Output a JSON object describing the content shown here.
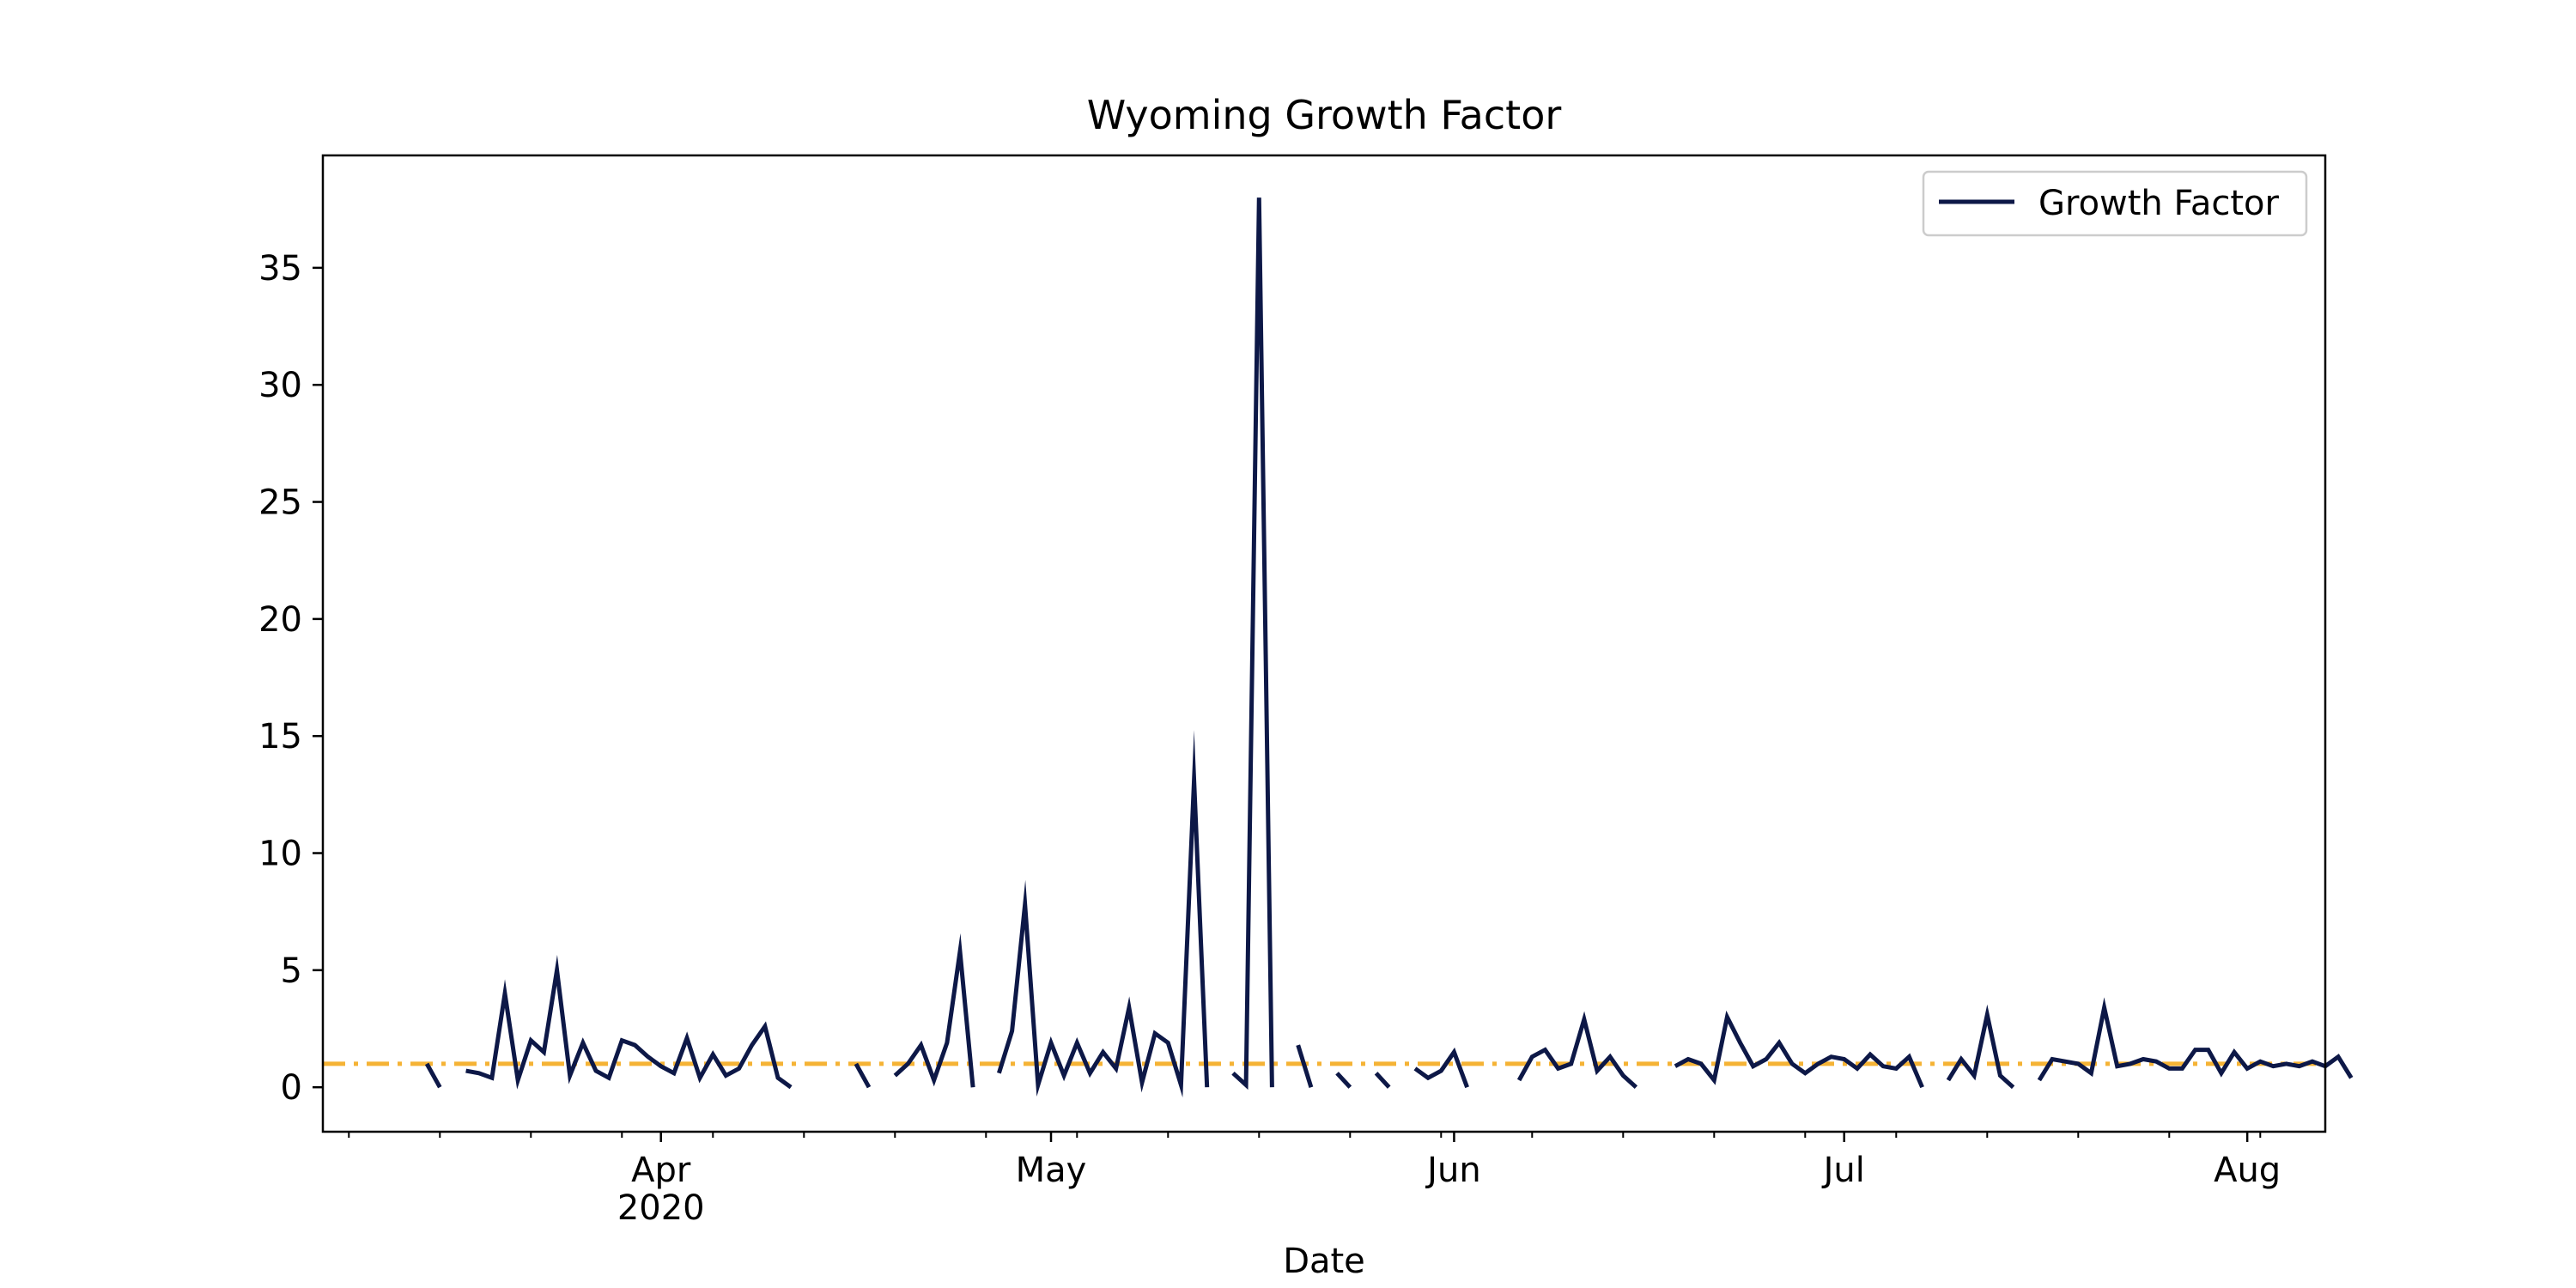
{
  "chart_data": {
    "type": "line",
    "title": "Wyoming Growth Factor",
    "xlabel": "Date",
    "ylabel": "",
    "x_range": [
      "2020-03-06",
      "2020-08-07"
    ],
    "ylim": [
      -1.9,
      39.8
    ],
    "y_ticks": [
      0,
      5,
      10,
      15,
      20,
      25,
      30,
      35
    ],
    "x_ticks": [
      {
        "date": "2020-04-01",
        "label": "Apr",
        "sublabel": "2020"
      },
      {
        "date": "2020-05-01",
        "label": "May",
        "sublabel": ""
      },
      {
        "date": "2020-06-01",
        "label": "Jun",
        "sublabel": ""
      },
      {
        "date": "2020-07-01",
        "label": "Jul",
        "sublabel": ""
      },
      {
        "date": "2020-08-01",
        "label": "Aug",
        "sublabel": ""
      }
    ],
    "grid": false,
    "legend": {
      "position": "top-right",
      "entries": [
        "Growth Factor"
      ]
    },
    "reference_line": {
      "y": 1.0,
      "style": "dash-dot",
      "color": "#f5b335"
    },
    "series": [
      {
        "name": "Growth Factor",
        "color": "#0d1847",
        "x_start": "2020-03-14",
        "values": [
          1.0,
          0.0,
          null,
          0.7,
          0.6,
          0.4,
          4.0,
          0.3,
          2.0,
          1.5,
          5.0,
          0.5,
          1.9,
          0.7,
          0.4,
          2.0,
          1.8,
          1.3,
          0.9,
          0.6,
          2.1,
          0.4,
          1.4,
          0.5,
          0.8,
          1.8,
          2.6,
          0.4,
          0.0,
          null,
          null,
          null,
          null,
          1.0,
          0.0,
          null,
          0.5,
          1.0,
          1.8,
          0.3,
          1.9,
          5.8,
          0.0,
          null,
          0.6,
          2.4,
          7.8,
          0.1,
          1.9,
          0.5,
          1.9,
          0.6,
          1.5,
          0.8,
          3.4,
          0.2,
          2.3,
          1.9,
          0.1,
          13.1,
          0.0,
          null,
          0.6,
          0.1,
          38.0,
          0.0,
          null,
          1.8,
          0.0,
          null,
          0.6,
          0.0,
          null,
          0.6,
          0.0,
          null,
          0.8,
          0.4,
          0.7,
          1.5,
          0.0,
          null,
          null,
          null,
          0.3,
          1.3,
          1.6,
          0.8,
          1.0,
          2.9,
          0.7,
          1.3,
          0.5,
          0.0,
          null,
          null,
          0.9,
          1.2,
          1.0,
          0.3,
          3.0,
          1.9,
          0.9,
          1.2,
          1.9,
          1.0,
          0.6,
          1.0,
          1.3,
          1.2,
          0.8,
          1.4,
          0.9,
          0.8,
          1.3,
          0.0,
          null,
          0.3,
          1.2,
          0.5,
          3.1,
          0.5,
          0.0,
          null,
          0.3,
          1.2,
          1.1,
          1.0,
          0.6,
          3.4,
          0.9,
          1.0,
          1.2,
          1.1,
          0.8,
          0.8,
          1.6,
          1.6,
          0.6,
          1.5,
          0.8,
          1.1,
          0.9,
          1.0,
          0.9,
          1.1,
          0.9,
          1.3,
          0.4
        ]
      }
    ]
  }
}
